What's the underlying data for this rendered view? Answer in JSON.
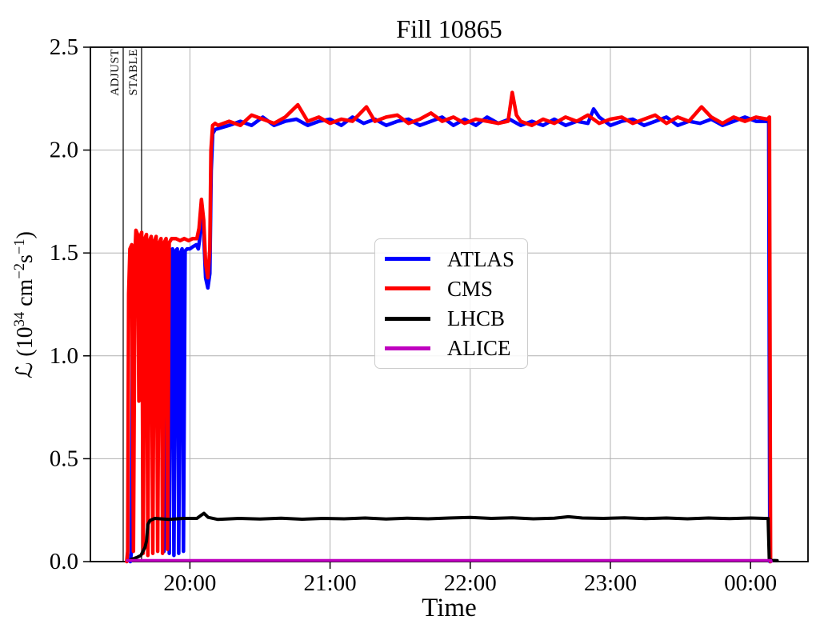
{
  "figure": {
    "background": "#ffffff"
  },
  "chart_data": {
    "type": "line",
    "title": "Fill 10865",
    "xlabel": "Time",
    "ylabel": "L (10^34 cm^-2 s^-1)",
    "ylabel_parts": {
      "lead": "ℒ (10",
      "exp1": "34",
      "mid": " cm",
      "exp2": "−2",
      "unit_s": "s",
      "exp3": "−1",
      "close": ")"
    },
    "xlim": [
      19.29,
      24.41
    ],
    "ylim": [
      0,
      2.5
    ],
    "grid": true,
    "grid_color": "#b0b0b0",
    "frame_color": "#000000",
    "legend_position": "center",
    "xticks": [
      {
        "value": 20,
        "label": "20:00"
      },
      {
        "value": 21,
        "label": "21:00"
      },
      {
        "value": 22,
        "label": "22:00"
      },
      {
        "value": 23,
        "label": "23:00"
      },
      {
        "value": 24,
        "label": "00:00"
      }
    ],
    "yticks": [
      {
        "value": 0.0,
        "label": "0.0"
      },
      {
        "value": 0.5,
        "label": "0.5"
      },
      {
        "value": 1.0,
        "label": "1.0"
      },
      {
        "value": 1.5,
        "label": "1.5"
      },
      {
        "value": 2.0,
        "label": "2.0"
      },
      {
        "value": 2.5,
        "label": "2.5"
      }
    ],
    "annotations": [
      {
        "t": 19.524,
        "label": "ADJUST"
      },
      {
        "t": 19.655,
        "label": "STABLE"
      }
    ],
    "series": [
      {
        "name": "ATLAS",
        "color": "#0000ff",
        "width": 4.5,
        "points": [
          [
            19.575,
            0
          ],
          [
            19.583,
            0.05
          ],
          [
            19.59,
            1.05
          ],
          [
            19.598,
            1.5
          ],
          [
            19.61,
            1.53
          ],
          [
            19.63,
            1.56
          ],
          [
            19.65,
            1.54
          ],
          [
            19.67,
            1.55
          ],
          [
            19.69,
            1.53
          ],
          [
            19.71,
            1.54
          ],
          [
            19.73,
            1.53
          ],
          [
            19.75,
            1.54
          ],
          [
            19.77,
            1.53
          ],
          [
            19.79,
            1.54
          ],
          [
            19.805,
            1.52
          ],
          [
            19.815,
            0.05
          ],
          [
            19.824,
            1.3
          ],
          [
            19.832,
            1.52
          ],
          [
            19.843,
            1.53
          ],
          [
            19.853,
            0.04
          ],
          [
            19.864,
            1.51
          ],
          [
            19.876,
            1.52
          ],
          [
            19.886,
            0.03
          ],
          [
            19.898,
            1.51
          ],
          [
            19.91,
            1.52
          ],
          [
            19.92,
            0.04
          ],
          [
            19.932,
            1.5
          ],
          [
            19.944,
            1.52
          ],
          [
            19.954,
            0.05
          ],
          [
            19.966,
            1.51
          ],
          [
            19.98,
            1.52
          ],
          [
            20.0,
            1.52
          ],
          [
            20.02,
            1.53
          ],
          [
            20.045,
            1.54
          ],
          [
            20.06,
            1.52
          ],
          [
            20.068,
            1.56
          ],
          [
            20.082,
            1.68
          ],
          [
            20.098,
            1.6
          ],
          [
            20.112,
            1.38
          ],
          [
            20.128,
            1.33
          ],
          [
            20.142,
            1.4
          ],
          [
            20.152,
            1.9
          ],
          [
            20.163,
            2.08
          ],
          [
            20.18,
            2.1
          ],
          [
            20.28,
            2.12
          ],
          [
            20.36,
            2.14
          ],
          [
            20.44,
            2.12
          ],
          [
            20.52,
            2.16
          ],
          [
            20.6,
            2.12
          ],
          [
            20.68,
            2.14
          ],
          [
            20.76,
            2.15
          ],
          [
            20.84,
            2.12
          ],
          [
            20.92,
            2.14
          ],
          [
            21.0,
            2.15
          ],
          [
            21.08,
            2.12
          ],
          [
            21.16,
            2.16
          ],
          [
            21.24,
            2.13
          ],
          [
            21.32,
            2.15
          ],
          [
            21.4,
            2.12
          ],
          [
            21.48,
            2.14
          ],
          [
            21.56,
            2.15
          ],
          [
            21.64,
            2.12
          ],
          [
            21.72,
            2.14
          ],
          [
            21.8,
            2.16
          ],
          [
            21.88,
            2.12
          ],
          [
            21.96,
            2.15
          ],
          [
            22.04,
            2.12
          ],
          [
            22.12,
            2.16
          ],
          [
            22.2,
            2.13
          ],
          [
            22.28,
            2.15
          ],
          [
            22.36,
            2.12
          ],
          [
            22.44,
            2.14
          ],
          [
            22.52,
            2.12
          ],
          [
            22.6,
            2.15
          ],
          [
            22.68,
            2.12
          ],
          [
            22.76,
            2.14
          ],
          [
            22.84,
            2.13
          ],
          [
            22.88,
            2.2
          ],
          [
            22.92,
            2.16
          ],
          [
            23.0,
            2.12
          ],
          [
            23.08,
            2.14
          ],
          [
            23.16,
            2.15
          ],
          [
            23.24,
            2.12
          ],
          [
            23.32,
            2.14
          ],
          [
            23.4,
            2.16
          ],
          [
            23.48,
            2.12
          ],
          [
            23.56,
            2.14
          ],
          [
            23.64,
            2.13
          ],
          [
            23.72,
            2.15
          ],
          [
            23.8,
            2.12
          ],
          [
            23.88,
            2.14
          ],
          [
            23.96,
            2.16
          ],
          [
            24.04,
            2.14
          ],
          [
            24.12,
            2.14
          ],
          [
            24.13,
            2.14
          ],
          [
            24.138,
            0
          ]
        ]
      },
      {
        "name": "CMS",
        "color": "#ff0000",
        "width": 4.5,
        "points": [
          [
            19.549,
            0
          ],
          [
            19.556,
            0.05
          ],
          [
            19.563,
            1.3
          ],
          [
            19.572,
            1.52
          ],
          [
            19.585,
            1.54
          ],
          [
            19.597,
            0.05
          ],
          [
            19.608,
            1.5
          ],
          [
            19.615,
            1.61
          ],
          [
            19.627,
            1.59
          ],
          [
            19.636,
            0.78
          ],
          [
            19.646,
            1.58
          ],
          [
            19.656,
            1.6
          ],
          [
            19.666,
            0.04
          ],
          [
            19.678,
            1.57
          ],
          [
            19.69,
            1.59
          ],
          [
            19.7,
            0.03
          ],
          [
            19.712,
            1.56
          ],
          [
            19.724,
            1.58
          ],
          [
            19.735,
            0.04
          ],
          [
            19.747,
            1.56
          ],
          [
            19.759,
            1.58
          ],
          [
            19.77,
            0.05
          ],
          [
            19.782,
            1.55
          ],
          [
            19.794,
            1.57
          ],
          [
            19.805,
            0.04
          ],
          [
            19.817,
            1.55
          ],
          [
            19.83,
            1.57
          ],
          [
            19.84,
            0.06
          ],
          [
            19.852,
            1.55
          ],
          [
            19.87,
            1.57
          ],
          [
            19.9,
            1.57
          ],
          [
            19.93,
            1.56
          ],
          [
            19.96,
            1.57
          ],
          [
            19.99,
            1.56
          ],
          [
            20.02,
            1.57
          ],
          [
            20.05,
            1.57
          ],
          [
            20.065,
            1.62
          ],
          [
            20.082,
            1.76
          ],
          [
            20.098,
            1.66
          ],
          [
            20.112,
            1.45
          ],
          [
            20.128,
            1.38
          ],
          [
            20.142,
            1.52
          ],
          [
            20.15,
            2.0
          ],
          [
            20.162,
            2.12
          ],
          [
            20.18,
            2.13
          ],
          [
            20.2,
            2.12
          ],
          [
            20.28,
            2.14
          ],
          [
            20.36,
            2.12
          ],
          [
            20.44,
            2.17
          ],
          [
            20.52,
            2.15
          ],
          [
            20.6,
            2.13
          ],
          [
            20.68,
            2.16
          ],
          [
            20.77,
            2.22
          ],
          [
            20.84,
            2.14
          ],
          [
            20.92,
            2.16
          ],
          [
            21.0,
            2.13
          ],
          [
            21.08,
            2.15
          ],
          [
            21.16,
            2.14
          ],
          [
            21.26,
            2.21
          ],
          [
            21.32,
            2.14
          ],
          [
            21.4,
            2.16
          ],
          [
            21.48,
            2.17
          ],
          [
            21.56,
            2.13
          ],
          [
            21.64,
            2.15
          ],
          [
            21.72,
            2.18
          ],
          [
            21.8,
            2.14
          ],
          [
            21.88,
            2.16
          ],
          [
            21.96,
            2.13
          ],
          [
            22.04,
            2.15
          ],
          [
            22.12,
            2.14
          ],
          [
            22.2,
            2.13
          ],
          [
            22.27,
            2.14
          ],
          [
            22.3,
            2.28
          ],
          [
            22.33,
            2.17
          ],
          [
            22.36,
            2.14
          ],
          [
            22.44,
            2.12
          ],
          [
            22.52,
            2.15
          ],
          [
            22.6,
            2.13
          ],
          [
            22.68,
            2.16
          ],
          [
            22.76,
            2.14
          ],
          [
            22.84,
            2.17
          ],
          [
            22.92,
            2.13
          ],
          [
            23.0,
            2.15
          ],
          [
            23.08,
            2.16
          ],
          [
            23.16,
            2.13
          ],
          [
            23.24,
            2.15
          ],
          [
            23.32,
            2.17
          ],
          [
            23.4,
            2.13
          ],
          [
            23.48,
            2.16
          ],
          [
            23.56,
            2.14
          ],
          [
            23.65,
            2.21
          ],
          [
            23.72,
            2.16
          ],
          [
            23.8,
            2.13
          ],
          [
            23.88,
            2.16
          ],
          [
            23.96,
            2.14
          ],
          [
            24.04,
            2.16
          ],
          [
            24.12,
            2.15
          ],
          [
            24.135,
            2.16
          ],
          [
            24.143,
            0
          ]
        ]
      },
      {
        "name": "LHCB",
        "color": "#000000",
        "width": 4,
        "points": [
          [
            19.58,
            0.01
          ],
          [
            19.62,
            0.02
          ],
          [
            19.65,
            0.03
          ],
          [
            19.665,
            0.05
          ],
          [
            19.68,
            0.07
          ],
          [
            19.69,
            0.1
          ],
          [
            19.7,
            0.18
          ],
          [
            19.715,
            0.2
          ],
          [
            19.75,
            0.21
          ],
          [
            19.85,
            0.205
          ],
          [
            19.95,
            0.21
          ],
          [
            20.05,
            0.21
          ],
          [
            20.08,
            0.225
          ],
          [
            20.1,
            0.235
          ],
          [
            20.13,
            0.215
          ],
          [
            20.2,
            0.205
          ],
          [
            20.35,
            0.21
          ],
          [
            20.5,
            0.207
          ],
          [
            20.65,
            0.211
          ],
          [
            20.8,
            0.206
          ],
          [
            20.95,
            0.21
          ],
          [
            21.1,
            0.208
          ],
          [
            21.25,
            0.212
          ],
          [
            21.4,
            0.207
          ],
          [
            21.55,
            0.211
          ],
          [
            21.7,
            0.208
          ],
          [
            21.85,
            0.212
          ],
          [
            22.0,
            0.215
          ],
          [
            22.15,
            0.21
          ],
          [
            22.3,
            0.213
          ],
          [
            22.45,
            0.208
          ],
          [
            22.6,
            0.211
          ],
          [
            22.7,
            0.218
          ],
          [
            22.8,
            0.212
          ],
          [
            22.95,
            0.21
          ],
          [
            23.1,
            0.213
          ],
          [
            23.25,
            0.209
          ],
          [
            23.4,
            0.212
          ],
          [
            23.55,
            0.208
          ],
          [
            23.7,
            0.212
          ],
          [
            23.85,
            0.209
          ],
          [
            24.0,
            0.212
          ],
          [
            24.1,
            0.21
          ],
          [
            24.125,
            0.21
          ],
          [
            24.133,
            0.012
          ],
          [
            24.15,
            0.006
          ],
          [
            24.19,
            0.005
          ]
        ]
      },
      {
        "name": "ALICE",
        "color": "#bf00bf",
        "width": 3.5,
        "points": [
          [
            19.553,
            0.006
          ],
          [
            24.145,
            0.006
          ],
          [
            24.148,
            0
          ]
        ]
      }
    ]
  }
}
